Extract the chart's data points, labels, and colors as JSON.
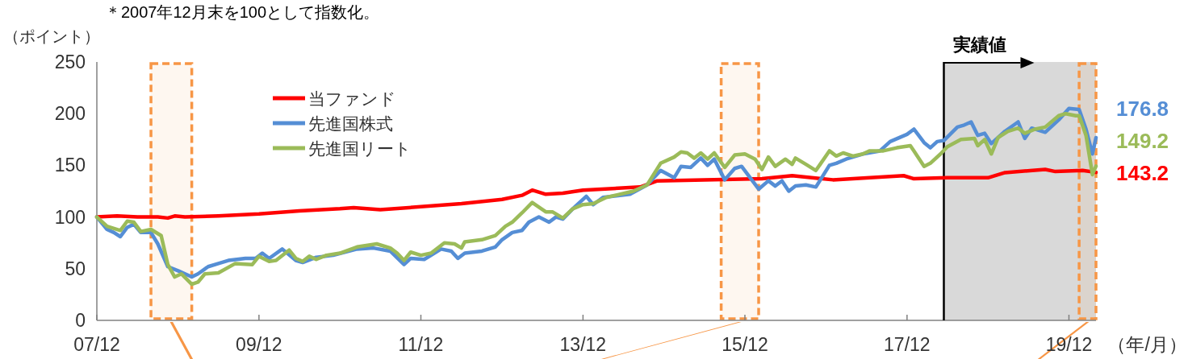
{
  "chart_data": {
    "type": "line",
    "annotations": [
      "＊2007年12月末を100として指数化。"
    ],
    "ylabel": "（ポイント）",
    "xlabel": "（年/月）",
    "xlim": [
      "2007-12-01",
      "2020-04-01"
    ],
    "xticks": [
      {
        "value": "2007-12-01",
        "label": "07/12"
      },
      {
        "value": "2009-12-01",
        "label": "09/12"
      },
      {
        "value": "2011-12-01",
        "label": "11/12"
      },
      {
        "value": "2013-12-01",
        "label": "13/12"
      },
      {
        "value": "2015-12-01",
        "label": "15/12"
      },
      {
        "value": "2017-12-01",
        "label": "17/12"
      },
      {
        "value": "2019-12-01",
        "label": "19/12"
      }
    ],
    "ylim": [
      0,
      250
    ],
    "yticks": [
      0,
      50,
      100,
      150,
      200,
      250
    ],
    "legend": "top left",
    "bands": [
      {
        "axis": "x",
        "from": "2018-05-16",
        "to": "2020-04-01",
        "color": "#d9d9d9"
      },
      {
        "axis": "x",
        "from": "2008-08-01",
        "to": "2009-02-01",
        "color": "#f79646"
      },
      {
        "axis": "x",
        "from": "2015-08-16",
        "to": "2016-02-01",
        "color": "#f79646"
      },
      {
        "axis": "x",
        "from": "2020-01-16",
        "to": "2020-04-01",
        "color": "#f79646"
      }
    ],
    "ref_lines": [
      {
        "axis": "x",
        "value": "2018-05-16",
        "label": "実績値",
        "color": "#000000"
      }
    ],
    "series": [
      {
        "name": "当ファンド",
        "color": "#ff0000",
        "x": [
          "2007-12-01",
          "2008-03-01",
          "2008-06-01",
          "2008-09-01",
          "2008-10-16",
          "2008-11-16",
          "2009-01-01",
          "2009-06-01",
          "2009-12-01",
          "2010-06-01",
          "2010-12-01",
          "2011-02-01",
          "2011-06-01",
          "2011-12-01",
          "2012-06-01",
          "2012-12-01",
          "2013-03-01",
          "2013-04-16",
          "2013-06-16",
          "2013-09-01",
          "2013-12-01",
          "2014-08-16",
          "2014-11-01",
          "2015-06-01",
          "2016-02-16",
          "2016-07-01",
          "2017-01-01",
          "2017-06-16",
          "2017-11-16",
          "2018-01-01",
          "2018-06-01",
          "2018-12-01",
          "2019-02-16",
          "2019-08-16",
          "2019-10-01",
          "2020-02-01",
          "2020-04-01"
        ],
        "values": [
          100,
          101,
          100,
          100,
          99,
          101,
          100,
          101,
          103,
          106,
          108,
          109,
          107,
          110,
          113,
          117,
          121,
          126,
          122,
          123,
          126,
          129,
          135,
          136,
          137,
          140,
          136,
          138,
          140,
          137,
          138,
          138,
          143,
          146,
          144,
          145,
          143.2
        ],
        "value_labels": [
          null,
          null,
          null,
          null,
          null,
          null,
          null,
          null,
          null,
          null,
          null,
          null,
          null,
          null,
          null,
          null,
          null,
          null,
          null,
          null,
          null,
          null,
          null,
          null,
          null,
          null,
          null,
          null,
          null,
          null,
          null,
          null,
          null,
          null,
          null,
          null,
          "143.2"
        ]
      },
      {
        "name": "先進国株式",
        "color": "#558ed5",
        "x": [
          "2007-12-01",
          "2008-01-16",
          "2008-02-16",
          "2008-03-16",
          "2008-04-16",
          "2008-05-16",
          "2008-06-16",
          "2008-08-01",
          "2008-09-01",
          "2008-10-16",
          "2008-12-01",
          "2009-02-01",
          "2009-03-01",
          "2009-04-16",
          "2009-06-01",
          "2009-07-16",
          "2009-10-01",
          "2009-11-16",
          "2009-12-16",
          "2010-01-16",
          "2010-03-16",
          "2010-05-16",
          "2010-06-16",
          "2010-08-16",
          "2010-11-01",
          "2011-02-16",
          "2011-05-01",
          "2011-07-16",
          "2011-09-16",
          "2011-10-16",
          "2011-12-16",
          "2012-01-16",
          "2012-03-01",
          "2012-04-16",
          "2012-05-16",
          "2012-06-16",
          "2012-09-01",
          "2012-11-01",
          "2012-12-01",
          "2013-01-16",
          "2013-03-01",
          "2013-04-01",
          "2013-05-16",
          "2013-07-01",
          "2013-08-01",
          "2013-09-01",
          "2013-10-16",
          "2013-12-16",
          "2014-01-16",
          "2014-03-01",
          "2014-07-01",
          "2014-09-16",
          "2014-11-16",
          "2015-01-16",
          "2015-02-16",
          "2015-04-01",
          "2015-05-16",
          "2015-06-16",
          "2015-07-16",
          "2015-09-01",
          "2015-10-16",
          "2015-11-16",
          "2016-02-01",
          "2016-03-16",
          "2016-04-16",
          "2016-05-16",
          "2016-06-16",
          "2016-07-16",
          "2016-09-01",
          "2016-10-16",
          "2016-12-16",
          "2017-01-16",
          "2017-03-01",
          "2017-05-16",
          "2017-08-01",
          "2017-09-16",
          "2017-12-01",
          "2018-01-01",
          "2018-02-16",
          "2018-03-16",
          "2018-04-16",
          "2018-05-16",
          "2018-07-16",
          "2018-08-16",
          "2018-09-16",
          "2018-10-16",
          "2018-11-16",
          "2018-12-16",
          "2019-02-16",
          "2019-04-16",
          "2019-05-16",
          "2019-06-16",
          "2019-08-16",
          "2019-10-16",
          "2019-12-01",
          "2020-01-16",
          "2020-02-16",
          "2020-03-16",
          "2020-04-01"
        ],
        "values": [
          100,
          88,
          85,
          81,
          90,
          93,
          85,
          85,
          74,
          52,
          48,
          42,
          45,
          52,
          55,
          58,
          60,
          60,
          65,
          60,
          69,
          58,
          56,
          61,
          63,
          69,
          70,
          67,
          54,
          60,
          59,
          63,
          69,
          67,
          60,
          65,
          67,
          71,
          78,
          85,
          87,
          95,
          100,
          95,
          100,
          98,
          108,
          120,
          112,
          119,
          122,
          131,
          145,
          138,
          149,
          148,
          157,
          150,
          156,
          136,
          147,
          149,
          127,
          135,
          130,
          135,
          125,
          130,
          131,
          129,
          150,
          152,
          156,
          161,
          164,
          173,
          180,
          185,
          172,
          167,
          173,
          174,
          187,
          189,
          192,
          179,
          181,
          171,
          183,
          192,
          176,
          186,
          182,
          194,
          205,
          204,
          185,
          161,
          176.8
        ],
        "value_labels": [
          null,
          null,
          null,
          null,
          null,
          null,
          null,
          null,
          null,
          null,
          null,
          null,
          null,
          null,
          null,
          null,
          null,
          null,
          null,
          null,
          null,
          null,
          null,
          null,
          null,
          null,
          null,
          null,
          null,
          null,
          null,
          null,
          null,
          null,
          null,
          null,
          null,
          null,
          null,
          null,
          null,
          null,
          null,
          null,
          null,
          null,
          null,
          null,
          null,
          null,
          null,
          null,
          null,
          null,
          null,
          null,
          null,
          null,
          null,
          null,
          null,
          null,
          null,
          null,
          null,
          null,
          null,
          null,
          null,
          null,
          null,
          null,
          null,
          null,
          null,
          null,
          null,
          null,
          null,
          null,
          null,
          null,
          null,
          null,
          null,
          null,
          null,
          null,
          null,
          null,
          null,
          null,
          null,
          null,
          null,
          null,
          null,
          null,
          "176.8"
        ]
      },
      {
        "name": "先進国リート",
        "color": "#9bbb59",
        "x": [
          "2007-12-01",
          "2008-01-16",
          "2008-03-16",
          "2008-04-16",
          "2008-05-16",
          "2008-06-16",
          "2008-08-01",
          "2008-09-16",
          "2008-10-16",
          "2008-11-16",
          "2008-12-16",
          "2009-02-01",
          "2009-03-01",
          "2009-04-01",
          "2009-06-01",
          "2009-08-16",
          "2009-11-01",
          "2009-12-01",
          "2010-01-16",
          "2010-02-16",
          "2010-04-16",
          "2010-05-16",
          "2010-06-16",
          "2010-07-16",
          "2010-08-16",
          "2010-10-01",
          "2010-12-01",
          "2011-02-16",
          "2011-05-16",
          "2011-07-16",
          "2011-08-16",
          "2011-09-16",
          "2011-10-16",
          "2011-12-01",
          "2012-01-16",
          "2012-03-16",
          "2012-05-01",
          "2012-06-01",
          "2012-06-16",
          "2012-09-01",
          "2012-11-01",
          "2012-12-16",
          "2013-01-16",
          "2013-03-01",
          "2013-04-16",
          "2013-06-16",
          "2013-07-16",
          "2013-09-01",
          "2013-10-16",
          "2013-12-01",
          "2014-01-16",
          "2014-03-16",
          "2014-07-16",
          "2014-09-16",
          "2014-11-16",
          "2015-01-16",
          "2015-02-16",
          "2015-03-16",
          "2015-04-16",
          "2015-05-16",
          "2015-06-16",
          "2015-07-16",
          "2015-09-01",
          "2015-10-16",
          "2015-12-01",
          "2016-01-16",
          "2016-02-16",
          "2016-03-16",
          "2016-04-16",
          "2016-06-01",
          "2016-07-01",
          "2016-07-16",
          "2016-09-01",
          "2016-10-16",
          "2016-12-16",
          "2017-01-16",
          "2017-02-16",
          "2017-04-01",
          "2017-05-16",
          "2017-06-16",
          "2017-08-16",
          "2017-10-16",
          "2017-12-16",
          "2018-01-01",
          "2018-02-16",
          "2018-03-16",
          "2018-05-01",
          "2018-06-01",
          "2018-08-01",
          "2018-10-01",
          "2018-10-16",
          "2018-11-16",
          "2018-12-16",
          "2019-01-16",
          "2019-03-01",
          "2019-04-16",
          "2019-05-16",
          "2019-07-01",
          "2019-08-16",
          "2019-10-16",
          "2019-11-16",
          "2020-01-01",
          "2020-01-16",
          "2020-02-16",
          "2020-03-16",
          "2020-04-01"
        ],
        "values": [
          100,
          91,
          87,
          96,
          95,
          86,
          88,
          82,
          54,
          42,
          45,
          35,
          37,
          45,
          46,
          55,
          54,
          62,
          57,
          58,
          68,
          60,
          57,
          62,
          59,
          63,
          65,
          71,
          74,
          70,
          65,
          58,
          66,
          63,
          65,
          75,
          74,
          70,
          76,
          78,
          82,
          91,
          95,
          104,
          114,
          105,
          105,
          99,
          108,
          112,
          113,
          119,
          125,
          131,
          152,
          158,
          163,
          162,
          157,
          162,
          156,
          162,
          148,
          160,
          161,
          156,
          146,
          158,
          149,
          156,
          151,
          157,
          151,
          145,
          164,
          159,
          162,
          159,
          161,
          164,
          164,
          167,
          169,
          164,
          149,
          152,
          161,
          168,
          175,
          176,
          169,
          175,
          161,
          177,
          183,
          186,
          181,
          185,
          187,
          198,
          200,
          198,
          198,
          179,
          141,
          149.2
        ],
        "value_labels": [
          null,
          null,
          null,
          null,
          null,
          null,
          null,
          null,
          null,
          null,
          null,
          null,
          null,
          null,
          null,
          null,
          null,
          null,
          null,
          null,
          null,
          null,
          null,
          null,
          null,
          null,
          null,
          null,
          null,
          null,
          null,
          null,
          null,
          null,
          null,
          null,
          null,
          null,
          null,
          null,
          null,
          null,
          null,
          null,
          null,
          null,
          null,
          null,
          null,
          null,
          null,
          null,
          null,
          null,
          null,
          null,
          null,
          null,
          null,
          null,
          null,
          null,
          null,
          null,
          null,
          null,
          null,
          null,
          null,
          null,
          null,
          null,
          null,
          null,
          null,
          null,
          null,
          null,
          null,
          null,
          null,
          null,
          null,
          null,
          null,
          null,
          null,
          null,
          null,
          null,
          null,
          null,
          null,
          null,
          null,
          null,
          null,
          null,
          null,
          null,
          null,
          null,
          null,
          null,
          null,
          "149.2"
        ]
      }
    ]
  }
}
